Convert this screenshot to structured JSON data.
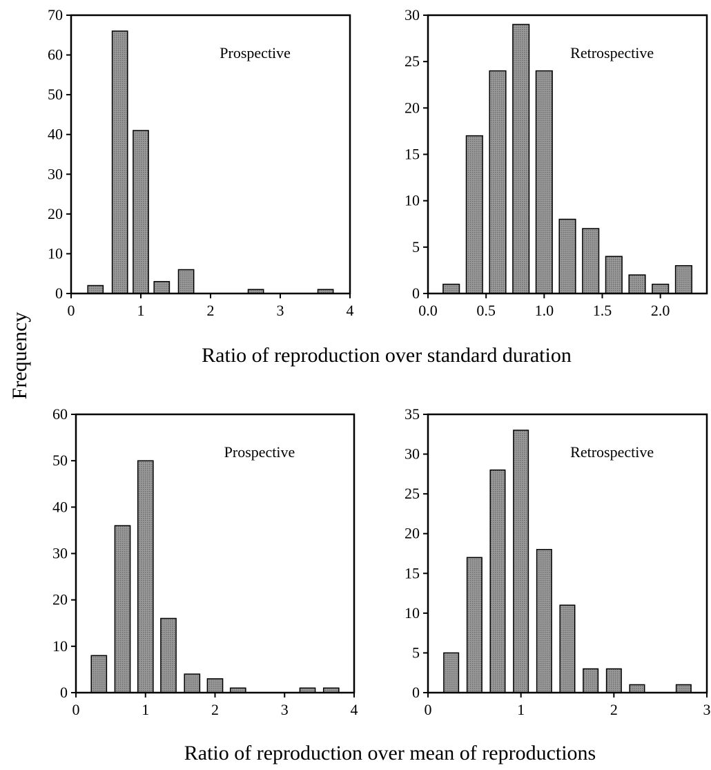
{
  "figure": {
    "ylabel": "Frequency",
    "xlabel_top": "Ratio of reproduction over standard duration",
    "xlabel_bottom": "Ratio of reproduction over mean of reproductions",
    "bar_fill": "#8c8c8c",
    "bar_stroke": "#000000"
  },
  "chart_data": [
    {
      "type": "bar",
      "panel": "top-left",
      "label": "Prospective",
      "xlim": [
        0,
        4
      ],
      "ylim": [
        0,
        70
      ],
      "xticks": [
        0,
        1,
        2,
        3,
        4
      ],
      "xtick_labels": [
        "0",
        "1",
        "2",
        "3",
        "4"
      ],
      "yticks": [
        0,
        10,
        20,
        30,
        40,
        50,
        60,
        70
      ],
      "bar_width": 0.22,
      "x": [
        0.35,
        0.7,
        1.0,
        1.3,
        1.65,
        2.65,
        3.65
      ],
      "values": [
        2,
        66,
        41,
        3,
        6,
        1,
        1
      ]
    },
    {
      "type": "bar",
      "panel": "top-right",
      "label": "Retrospective",
      "xlim": [
        0,
        2.4
      ],
      "ylim": [
        0,
        30
      ],
      "xticks": [
        0,
        0.5,
        1.0,
        1.5,
        2.0
      ],
      "xtick_labels": [
        "0.0",
        "0.5",
        "1.0",
        "1.5",
        "2.0"
      ],
      "yticks": [
        0,
        5,
        10,
        15,
        20,
        25,
        30
      ],
      "bar_width": 0.14,
      "x": [
        0.2,
        0.4,
        0.6,
        0.8,
        1.0,
        1.2,
        1.4,
        1.6,
        1.8,
        2.0,
        2.2
      ],
      "values": [
        1,
        17,
        24,
        29,
        24,
        8,
        7,
        4,
        2,
        1,
        3
      ]
    },
    {
      "type": "bar",
      "panel": "bottom-left",
      "label": "Prospective",
      "xlim": [
        0,
        4
      ],
      "ylim": [
        0,
        60
      ],
      "xticks": [
        0,
        1,
        2,
        3,
        4
      ],
      "xtick_labels": [
        "0",
        "1",
        "2",
        "3",
        "4"
      ],
      "yticks": [
        0,
        10,
        20,
        30,
        40,
        50,
        60
      ],
      "bar_width": 0.22,
      "x": [
        0.33,
        0.67,
        1.0,
        1.33,
        1.67,
        2.0,
        2.33,
        3.33,
        3.67
      ],
      "values": [
        8,
        36,
        50,
        16,
        4,
        3,
        1,
        1,
        1
      ]
    },
    {
      "type": "bar",
      "panel": "bottom-right",
      "label": "Retrospective",
      "xlim": [
        0,
        3
      ],
      "ylim": [
        0,
        35
      ],
      "xticks": [
        0,
        1,
        2,
        3
      ],
      "xtick_labels": [
        "0",
        "1",
        "2",
        "3"
      ],
      "yticks": [
        0,
        5,
        10,
        15,
        20,
        25,
        30,
        35
      ],
      "bar_width": 0.16,
      "x": [
        0.25,
        0.5,
        0.75,
        1.0,
        1.25,
        1.5,
        1.75,
        2.0,
        2.25,
        2.75
      ],
      "values": [
        5,
        17,
        28,
        33,
        18,
        11,
        3,
        3,
        1,
        1
      ]
    }
  ]
}
